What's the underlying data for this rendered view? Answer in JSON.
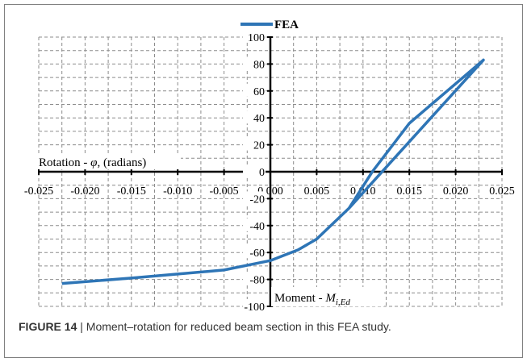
{
  "chart_data": {
    "type": "line",
    "series": [
      {
        "name": "FEA",
        "color": "#2e75b6",
        "x": [
          -0.0225,
          -0.015,
          -0.01,
          -0.005,
          0.0,
          0.003,
          0.005,
          0.0085,
          0.023,
          0.0085,
          0.011,
          0.015,
          0.023
        ],
        "y": [
          -83,
          -79,
          -76,
          -73,
          -66,
          -58,
          -50,
          -27,
          83,
          -27,
          0,
          36,
          83
        ]
      }
    ],
    "xlim": [
      -0.025,
      0.025
    ],
    "ylim": [
      -100,
      100
    ],
    "x_ticks": [
      "-0.025",
      "-0.020",
      "-0.015",
      "-0.010",
      "-0.005",
      "0.000",
      "0.005",
      "0.010",
      "0.015",
      "0.020",
      "0.025"
    ],
    "y_ticks": [
      "-100",
      "-80",
      "-60",
      "-40",
      "-20",
      "0",
      "20",
      "40",
      "60",
      "80",
      "100"
    ],
    "xlabel": "Rotation - φ, (radians)",
    "ylabel": "Moment - M_i,Ed",
    "grid": "dashed",
    "legend_position": "top-center"
  },
  "caption": {
    "label": "FIGURE 14",
    "text": "| Moment–rotation for reduced beam section in this FEA study."
  }
}
